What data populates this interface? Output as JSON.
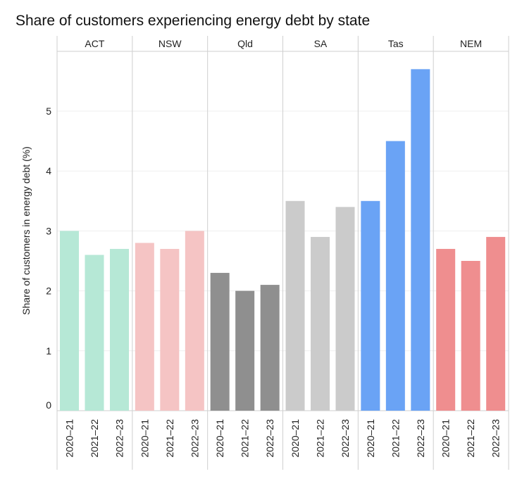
{
  "chart_data": {
    "type": "bar",
    "title": "Share of customers experiencing energy debt by state",
    "xlabel": "",
    "ylabel": "Share of customers in energy debt (%)",
    "ylim": [
      0,
      6
    ],
    "yticks": [
      0,
      1,
      2,
      3,
      4,
      5
    ],
    "grid": true,
    "legend": "none",
    "categories": [
      "2020–21",
      "2021–22",
      "2022–23"
    ],
    "facets": [
      {
        "name": "ACT",
        "color": "#b6e8d6",
        "values": [
          3.0,
          2.6,
          2.7
        ]
      },
      {
        "name": "NSW",
        "color": "#f5c4c4",
        "values": [
          2.8,
          2.7,
          3.0
        ]
      },
      {
        "name": "Qld",
        "color": "#8f8f8f",
        "values": [
          2.3,
          2.0,
          2.1
        ]
      },
      {
        "name": "SA",
        "color": "#cbcbcb",
        "values": [
          3.5,
          2.9,
          3.4
        ]
      },
      {
        "name": "Tas",
        "color": "#6aa3f5",
        "values": [
          3.5,
          4.5,
          5.7
        ]
      },
      {
        "name": "NEM",
        "color": "#ef8e8f",
        "values": [
          2.7,
          2.5,
          2.9
        ]
      }
    ]
  }
}
